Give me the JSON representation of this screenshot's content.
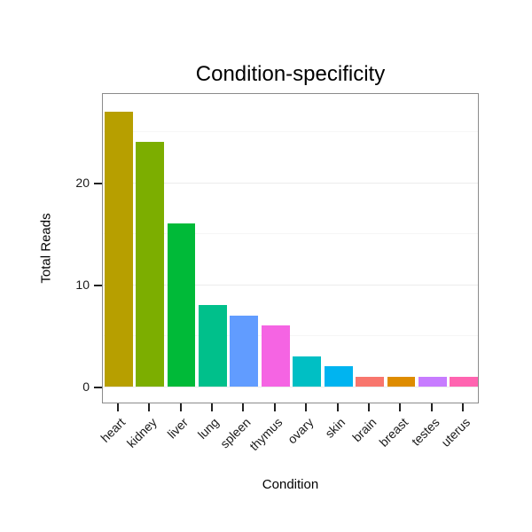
{
  "chart_data": {
    "type": "bar",
    "title": "Condition-specificity",
    "xlabel": "Condition",
    "ylabel": "Total Reads",
    "categories": [
      "heart",
      "kidney",
      "liver",
      "lung",
      "spleen",
      "thymus",
      "ovary",
      "skin",
      "brain",
      "breast",
      "testes",
      "uterus"
    ],
    "values": [
      27,
      24,
      16,
      8,
      7,
      6,
      3,
      2,
      1,
      1,
      1,
      1
    ],
    "colors": [
      "#B79F00",
      "#7CAE00",
      "#00BA38",
      "#00C08B",
      "#619CFF",
      "#F564E3",
      "#00BFC4",
      "#00B4F0",
      "#F8766D",
      "#DE8C00",
      "#C77CFF",
      "#FF64B0"
    ],
    "ylim": [
      0,
      28.9
    ],
    "yticks": [
      0,
      10,
      20
    ],
    "yticks_minor": [
      5,
      15,
      25
    ],
    "grid": "faint-horizontal",
    "legend": "none",
    "panel_border_color": "#8b8b8b",
    "background_color": "#ffffff"
  }
}
